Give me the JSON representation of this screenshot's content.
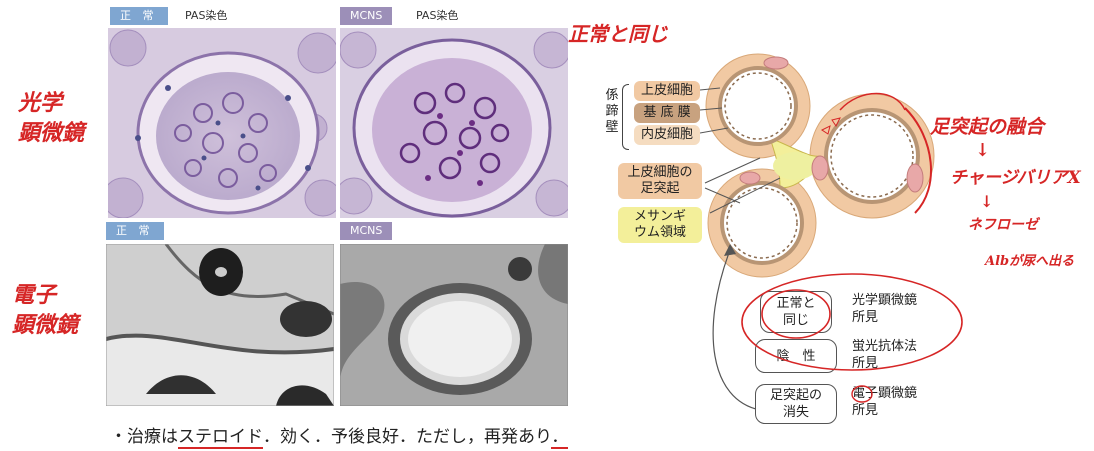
{
  "micro": {
    "normal_tag_top": "正 常",
    "pas_left": "PAS染色",
    "mcns_tag_top": "MCNS",
    "pas_right": "PAS染色",
    "normal_tag_bottom": "正 常",
    "mcns_tag_bottom": "MCNS"
  },
  "handwritten": {
    "light_microscope": [
      "光学",
      "顕微鏡"
    ],
    "electron_microscope": [
      "電子",
      "顕微鏡"
    ],
    "same_as_normal": "正常と同じ",
    "podocyte_fusion": "足突起の融合",
    "arrow1": "↓",
    "charge_barrier": "チャージバリアX",
    "arrow2": "↓",
    "nephrosis": "ネフローゼ",
    "alb_urine": "Albが尿へ出る"
  },
  "diagram": {
    "wall_label": [
      "係",
      "蹄",
      "壁"
    ],
    "layers": [
      "上皮細胞",
      "基 底 膜",
      "内皮細胞"
    ],
    "foot_process": [
      "上皮細胞の",
      "足突起"
    ],
    "mesangium": [
      "メサンギ",
      "ウム領域"
    ]
  },
  "findings": [
    {
      "result": [
        "正常と",
        "同じ"
      ],
      "method": [
        "光学顕微鏡",
        "所見"
      ]
    },
    {
      "result": [
        "陰　性"
      ],
      "method": [
        "蛍光抗体法",
        "所見"
      ]
    },
    {
      "result": [
        "足突起の",
        "消失"
      ],
      "method": [
        "電子顕微鏡",
        "所見"
      ]
    }
  ],
  "footer": {
    "bullet": "・",
    "text_a": "治療は",
    "text_steroid": "ステロイド",
    "text_b": "．効く．予後良好．ただし，再発あり",
    "text_end": "．"
  },
  "colors": {
    "handwriting": "#d62626",
    "normal_tag": "#7fa6d1",
    "mcns_tag": "#9c8fb8",
    "epithelial": "#f1c9a3",
    "basement": "#b89574",
    "mesangium": "#f3ef9a"
  }
}
